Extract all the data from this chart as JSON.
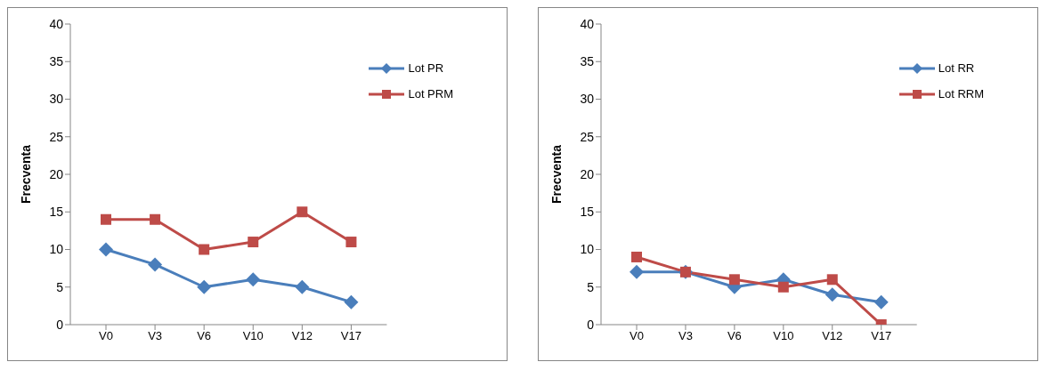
{
  "chart_data": [
    {
      "type": "line",
      "ylabel": "Frecventa",
      "categories": [
        "V0",
        "V3",
        "V6",
        "V10",
        "V12",
        "V17"
      ],
      "series": [
        {
          "name": "Lot PR",
          "color": "#4a7ebb",
          "marker": "diamond",
          "values": [
            10,
            8,
            5,
            6,
            5,
            3
          ]
        },
        {
          "name": "Lot PRM",
          "color": "#be4b48",
          "marker": "square",
          "values": [
            14,
            14,
            10,
            11,
            15,
            11
          ]
        }
      ],
      "ylim": [
        0,
        40
      ],
      "yticks": [
        0,
        5,
        10,
        15,
        20,
        25,
        30,
        35,
        40
      ],
      "grid": false,
      "legend": "top right",
      "line_style": "solid"
    },
    {
      "type": "line",
      "ylabel": "Frecventa",
      "categories": [
        "V0",
        "V3",
        "V6",
        "V10",
        "V12",
        "V17"
      ],
      "series": [
        {
          "name": "Lot RR",
          "color": "#4a7ebb",
          "marker": "diamond",
          "values": [
            7,
            7,
            5,
            6,
            4,
            3
          ]
        },
        {
          "name": "Lot RRM",
          "color": "#be4b48",
          "marker": "square",
          "values": [
            9,
            7,
            6,
            5,
            6,
            0
          ]
        }
      ],
      "ylim": [
        0,
        40
      ],
      "yticks": [
        0,
        5,
        10,
        15,
        20,
        25,
        30,
        35,
        40
      ],
      "grid": false,
      "legend": "top right",
      "line_style": "solid"
    }
  ]
}
